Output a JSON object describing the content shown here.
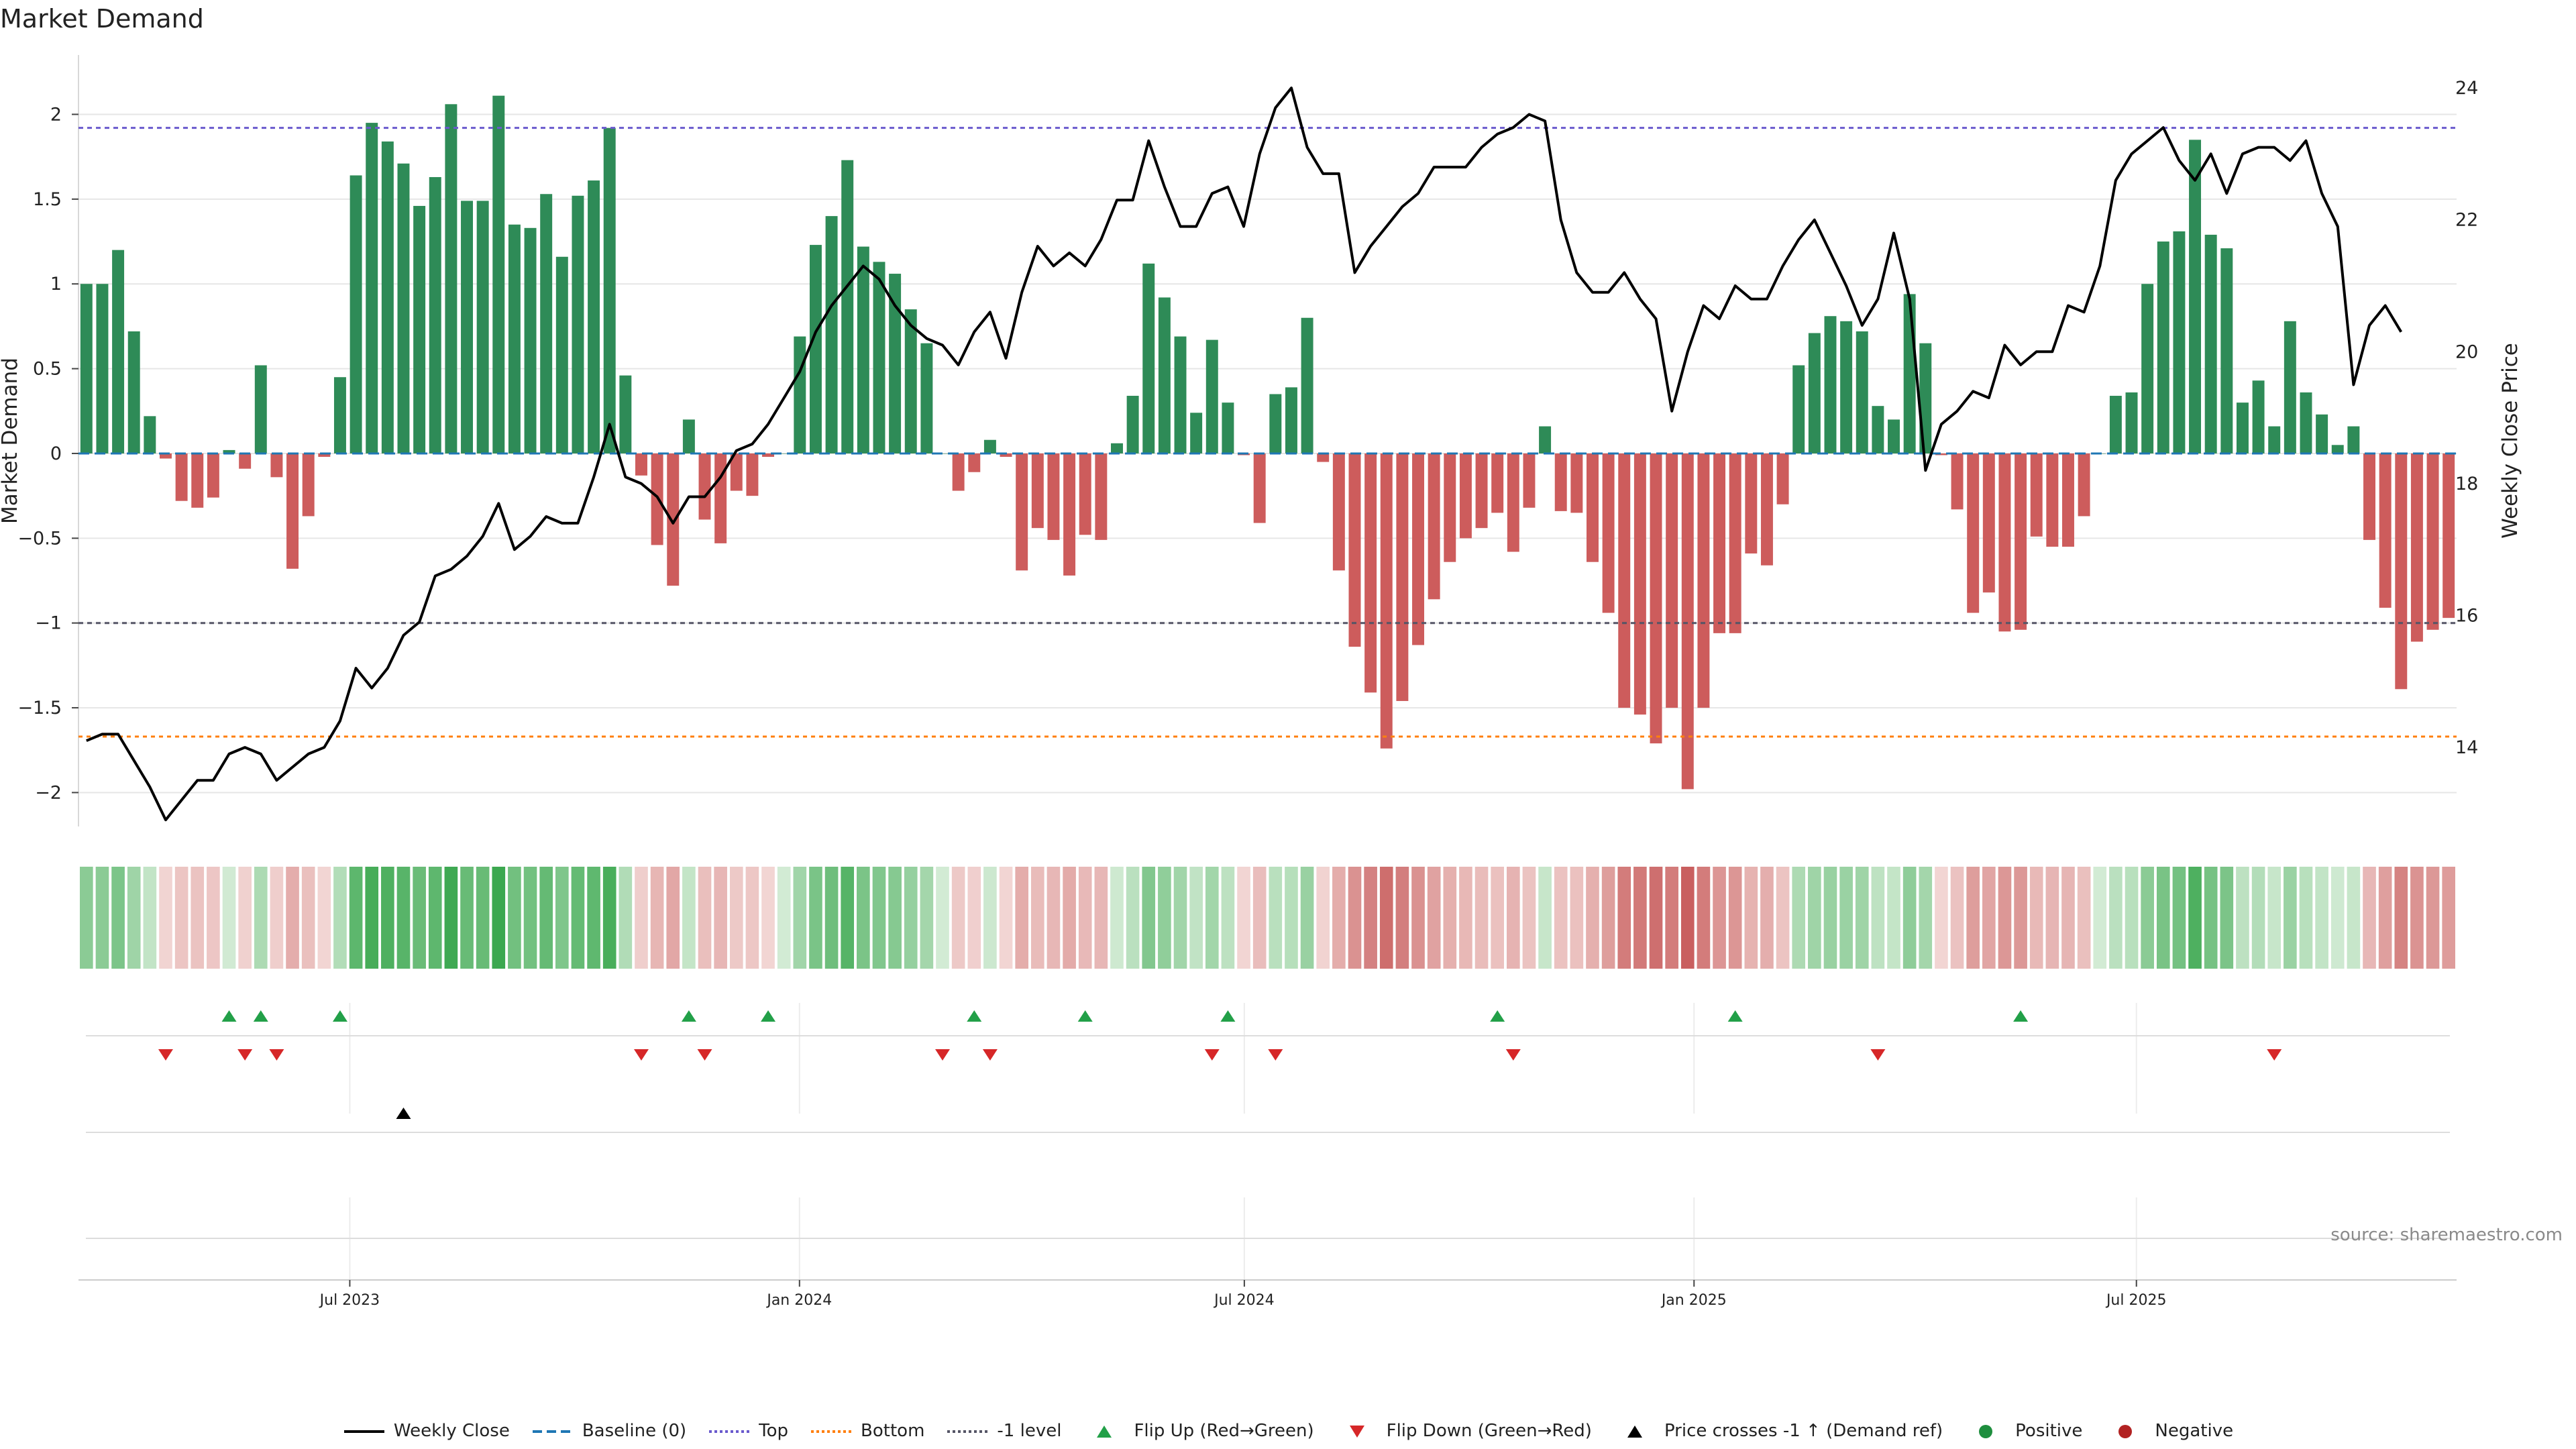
{
  "page": {
    "title": "Market Demand",
    "source": "source: sharemaestro.com"
  },
  "colors": {
    "positive_bar": "#2e8b57",
    "negative_bar": "#cd5c5c",
    "price_line": "#000000",
    "baseline": "#1f77b4",
    "top_line": "#6a5acd",
    "bottom_line": "#ff7f0e",
    "level_line": "#555566",
    "flip_up": "#22a048",
    "flip_down": "#d62728",
    "cross_marker": "#000000",
    "positive_dot": "#1e8e3e",
    "negative_dot": "#b22222"
  },
  "legend": [
    {
      "label": "Weekly Close",
      "kind": "line",
      "color": "#000000",
      "dash": ""
    },
    {
      "label": "Baseline (0)",
      "kind": "line",
      "color": "#1f77b4",
      "dash": "14 7"
    },
    {
      "label": "Top",
      "kind": "line",
      "color": "#6a5acd",
      "dash": "4 4"
    },
    {
      "label": "Bottom",
      "kind": "line",
      "color": "#ff7f0e",
      "dash": "4 4"
    },
    {
      "label": "-1 level",
      "kind": "line",
      "color": "#555566",
      "dash": "4 4"
    },
    {
      "label": "Flip Up (Red→Green)",
      "kind": "tri-up",
      "color": "#22a048"
    },
    {
      "label": "Flip Down (Green→Red)",
      "kind": "tri-down",
      "color": "#d62728"
    },
    {
      "label": "Price crosses -1 ↑ (Demand ref)",
      "kind": "tri-up",
      "color": "#000000"
    },
    {
      "label": "Positive",
      "kind": "dot",
      "color": "#1e8e3e"
    },
    {
      "label": "Negative",
      "kind": "dot",
      "color": "#b22222"
    }
  ],
  "chart_data": {
    "type": "bar",
    "title": "Market Demand",
    "ylabel": "Market Demand",
    "y2label": "Weekly Close Price",
    "ylim": [
      -2.2,
      2.35
    ],
    "y2lim": [
      12.8,
      24.5
    ],
    "yticks": [
      -2,
      -1.5,
      -1,
      -0.5,
      0,
      0.5,
      1,
      1.5,
      2
    ],
    "ytick_labels": [
      "−2",
      "−1.5",
      "−1",
      "−0.5",
      "0",
      "0.5",
      "1",
      "1.5",
      "2"
    ],
    "y2ticks": [
      14,
      16,
      18,
      20,
      22,
      24
    ],
    "y2tick_labels": [
      "14",
      "16",
      "18",
      "20",
      "22",
      "24"
    ],
    "x_start": "2023-03-12",
    "x_end": "2025-11-09",
    "x_period_days": 7,
    "xticks": [
      {
        "date": "2023-07-01",
        "label": "Jul 2023"
      },
      {
        "date": "2024-01-01",
        "label": "Jan 2024"
      },
      {
        "date": "2024-07-01",
        "label": "Jul 2024"
      },
      {
        "date": "2025-01-01",
        "label": "Jan 2025"
      },
      {
        "date": "2025-07-01",
        "label": "Jul 2025"
      }
    ],
    "reference_lines": {
      "baseline": 0,
      "top": 1.92,
      "bottom": -1.67,
      "minus_one": -1
    },
    "series": [
      {
        "name": "Market Demand",
        "values": [
          1.0,
          1.0,
          1.2,
          0.72,
          0.22,
          -0.03,
          -0.28,
          -0.32,
          -0.26,
          0.02,
          -0.09,
          0.52,
          -0.14,
          -0.68,
          -0.37,
          -0.02,
          0.45,
          1.64,
          1.95,
          1.84,
          1.71,
          1.46,
          1.63,
          2.06,
          1.49,
          1.49,
          2.11,
          1.35,
          1.33,
          1.53,
          1.16,
          1.52,
          1.61,
          1.92,
          0.46,
          -0.13,
          -0.54,
          -0.78,
          0.2,
          -0.39,
          -0.53,
          -0.22,
          -0.25,
          -0.02,
          0.0,
          0.69,
          1.23,
          1.4,
          1.73,
          1.22,
          1.13,
          1.06,
          0.85,
          0.65,
          0.0,
          -0.22,
          -0.11,
          0.08,
          -0.02,
          -0.69,
          -0.44,
          -0.51,
          -0.72,
          -0.48,
          -0.51,
          0.06,
          0.34,
          1.12,
          0.92,
          0.69,
          0.24,
          0.67,
          0.3,
          -0.01,
          -0.41,
          0.35,
          0.39,
          0.8,
          -0.05,
          -0.69,
          -1.14,
          -1.41,
          -1.74,
          -1.46,
          -1.13,
          -0.86,
          -0.64,
          -0.5,
          -0.44,
          -0.35,
          -0.58,
          -0.32,
          0.16,
          -0.34,
          -0.35,
          -0.64,
          -0.94,
          -1.5,
          -1.54,
          -1.71,
          -1.5,
          -1.98,
          -1.5,
          -1.06,
          -1.06,
          -0.59,
          -0.66,
          -0.3,
          0.52,
          0.71,
          0.81,
          0.78,
          0.72,
          0.28,
          0.2,
          0.94,
          0.65,
          -0.01,
          -0.33,
          -0.94,
          -0.82,
          -1.05,
          -1.04,
          -0.49,
          -0.55,
          -0.55,
          -0.37,
          0.0,
          0.34,
          0.36,
          1.0,
          1.25,
          1.31,
          1.85,
          1.29,
          1.21,
          0.3,
          0.43,
          0.16,
          0.78,
          0.36,
          0.23,
          0.05,
          0.16,
          -0.51,
          -0.91,
          -1.39,
          -1.11,
          -1.04,
          -0.97
        ]
      },
      {
        "name": "Weekly Close",
        "values": [
          14.1,
          14.2,
          14.2,
          13.8,
          13.4,
          12.9,
          13.2,
          13.5,
          13.5,
          13.9,
          14.0,
          13.9,
          13.5,
          13.7,
          13.9,
          14.0,
          14.4,
          15.2,
          14.9,
          15.2,
          15.7,
          15.9,
          16.6,
          16.7,
          16.9,
          17.2,
          17.7,
          17.0,
          17.2,
          17.5,
          17.4,
          17.4,
          18.1,
          18.9,
          18.1,
          18.0,
          17.8,
          17.4,
          17.8,
          17.8,
          18.1,
          18.5,
          18.6,
          18.9,
          19.3,
          19.7,
          20.3,
          20.7,
          21.0,
          21.3,
          21.1,
          20.7,
          20.4,
          20.2,
          20.1,
          19.8,
          20.3,
          20.6,
          19.9,
          20.9,
          21.6,
          21.3,
          21.5,
          21.3,
          21.7,
          22.3,
          22.3,
          23.2,
          22.5,
          21.9,
          21.9,
          22.4,
          22.5,
          21.9,
          23.0,
          23.7,
          24.0,
          23.1,
          22.7,
          22.7,
          21.2,
          21.6,
          21.9,
          22.2,
          22.4,
          22.8,
          22.8,
          22.8,
          23.1,
          23.3,
          23.4,
          23.6,
          23.5,
          22.0,
          21.2,
          20.9,
          20.9,
          21.2,
          20.8,
          20.5,
          19.1,
          20.0,
          20.7,
          20.5,
          21.0,
          20.8,
          20.8,
          21.3,
          21.7,
          22.0,
          21.5,
          21.0,
          20.4,
          20.8,
          21.8,
          20.8,
          18.2,
          18.9,
          19.1,
          19.4,
          19.3,
          20.1,
          19.8,
          20.0,
          20.0,
          20.7,
          20.6,
          21.3,
          22.6,
          23.0,
          23.2,
          23.4,
          22.9,
          22.6,
          23.0,
          22.4,
          23.0,
          23.1,
          23.1,
          22.9,
          23.2,
          22.4,
          21.9,
          19.5,
          20.4,
          20.7,
          20.3
        ]
      }
    ],
    "heat_strip": {
      "label": "demand color strip",
      "source_series": "Market Demand"
    },
    "flip_up_weeks": [
      9,
      11,
      16,
      38,
      43,
      56,
      63,
      72,
      89,
      104,
      122
    ],
    "flip_down_weeks": [
      5,
      10,
      12,
      35,
      39,
      54,
      57,
      71,
      75,
      90,
      113,
      138
    ],
    "price_cross_weeks": [
      20
    ],
    "positive_dot_weeks": [],
    "negative_dot_weeks": []
  }
}
